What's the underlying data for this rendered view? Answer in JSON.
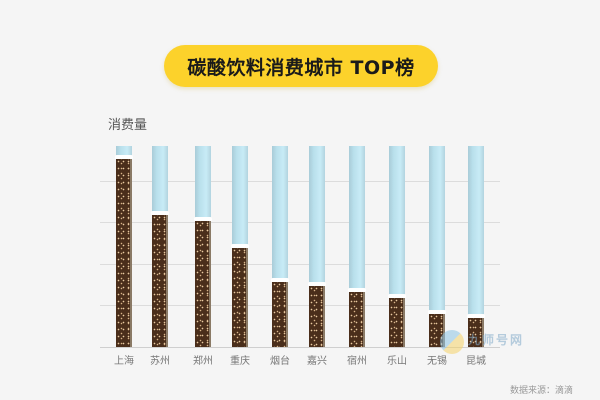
{
  "title": "碳酸饮料消费城市 TOP榜",
  "y_axis_label": "消费量",
  "source": "数据来源：滴滴",
  "watermark": "九师号网",
  "colors": {
    "pill": "#fcd22b",
    "liquid": "#4a2e1b",
    "tube": "#bfe4f0",
    "background": "#f5f5f5"
  },
  "chart_data": {
    "type": "bar",
    "title": "碳酸饮料消费城市 TOP榜",
    "xlabel": "",
    "ylabel": "消费量",
    "categories": [
      "上海",
      "苏州",
      "郑州",
      "重庆",
      "烟台",
      "嘉兴",
      "宿州",
      "乐山",
      "无锡",
      "昆城"
    ],
    "values": [
      94,
      66,
      63,
      50,
      33,
      31,
      28,
      25,
      17,
      15
    ],
    "ylim": [
      0,
      100
    ],
    "grid": true,
    "legend": null
  }
}
